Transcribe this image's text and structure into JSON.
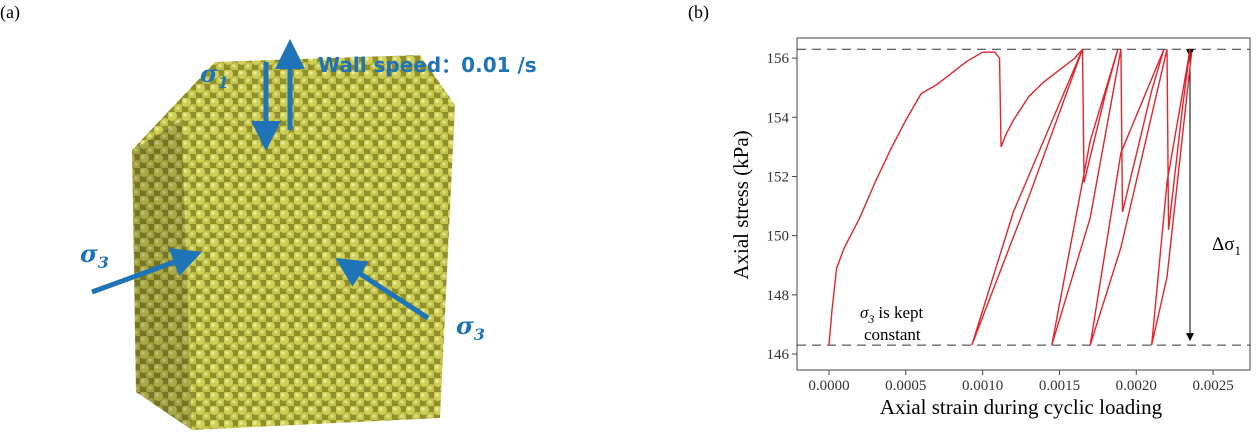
{
  "panel_a": {
    "label": "(a)",
    "sigma1": {
      "symbol": "σ",
      "subscript": "1"
    },
    "wall_speed": "Wall speed：0.01 /s",
    "sigma3_left": {
      "symbol": "σ",
      "subscript": "3"
    },
    "sigma3_right": {
      "symbol": "σ",
      "subscript": "3"
    }
  },
  "chart_data": {
    "type": "line",
    "panel_label": "(b)",
    "x_label": "Axial strain during cyclic loading",
    "y_label": "Axial stress (kPa)",
    "xlim": [
      -0.000208,
      0.00274
    ],
    "ylim": [
      145.46,
      156.68
    ],
    "xticks": [
      {
        "value": 0,
        "label": "0.0000"
      },
      {
        "value": 0.0005,
        "label": "0.0005"
      },
      {
        "value": 0.001,
        "label": "0.0010"
      },
      {
        "value": 0.0015,
        "label": "0.0015"
      },
      {
        "value": 0.002,
        "label": "0.0020"
      },
      {
        "value": 0.0025,
        "label": "0.0025"
      }
    ],
    "yticks": [
      146,
      148,
      150,
      152,
      154,
      156
    ],
    "hlines": [
      156.3,
      146.3
    ],
    "annotation_left": {
      "symbol": "σ",
      "subscript": "3",
      "lines": [
        "is kept",
        "constant"
      ]
    },
    "annotation_right": {
      "symbol": "Δσ",
      "subscript": "1"
    },
    "series": [
      {
        "color": "#e8232a",
        "x": [
          0,
          2e-05,
          5e-05,
          0.0001,
          0.0002,
          0.0003,
          0.0004,
          0.0005,
          0.0006,
          0.0007,
          0.0008,
          0.0009,
          0.001,
          0.00108,
          0.00111,
          0.00112,
          0.00115,
          0.0012,
          0.0013,
          0.0014,
          0.0015,
          0.0016,
          0.00165,
          0.0013,
          0.00093,
          0.0012,
          0.00165,
          0.00166,
          0.0018,
          0.00188,
          0.0017,
          0.00145,
          0.0017,
          0.0019,
          0.00191,
          0.0021,
          0.00218,
          0.0019,
          0.0017,
          0.0019,
          0.0022,
          0.00221,
          0.0023,
          0.00235,
          0.0022,
          0.0021,
          0.0022,
          0.00236
        ],
        "values": [
          146.3,
          147.5,
          148.9,
          149.6,
          150.6,
          151.8,
          152.9,
          153.9,
          154.8,
          155.1,
          155.5,
          155.9,
          156.2,
          156.2,
          156.0,
          153.0,
          153.4,
          153.9,
          154.7,
          155.2,
          155.6,
          156.0,
          156.3,
          151.3,
          146.3,
          150.8,
          156.3,
          151.8,
          154.8,
          156.3,
          153.2,
          146.3,
          150.6,
          156.3,
          150.8,
          154.9,
          156.3,
          152.8,
          146.3,
          149.6,
          156.3,
          150.2,
          154.3,
          156.3,
          151.8,
          146.3,
          148.6,
          156.2
        ]
      }
    ]
  }
}
